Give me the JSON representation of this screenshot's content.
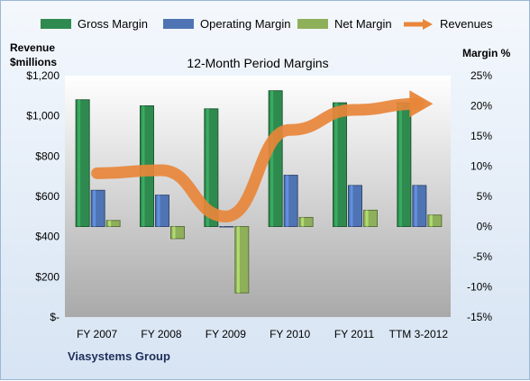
{
  "legend": [
    {
      "label": "Gross Margin",
      "color": "#2f8a4f"
    },
    {
      "label": "Operating Margin",
      "color": "#4f74b3"
    },
    {
      "label": "Net Margin",
      "color": "#8fb05a"
    },
    {
      "label": "Revenues",
      "color": "#e8863a"
    }
  ],
  "left_axis_title_line1": "Revenue",
  "left_axis_title_line2": "$millions",
  "right_axis_title": "Margin %",
  "company": "Viasystems Group",
  "chart_data": {
    "type": "bar",
    "title": "12-Month Period Margins",
    "categories": [
      "FY 2007",
      "FY 2008",
      "FY 2009",
      "FY 2010",
      "FY 2011",
      "TTM 3-2012"
    ],
    "series": [
      {
        "name": "Gross Margin",
        "axis": "right",
        "type": "bar",
        "values": [
          21,
          20,
          19.5,
          22.5,
          20.5,
          20.5
        ]
      },
      {
        "name": "Operating Margin",
        "axis": "right",
        "type": "bar",
        "values": [
          6,
          5.2,
          0,
          8.5,
          6.8,
          6.8
        ]
      },
      {
        "name": "Net Margin",
        "axis": "right",
        "type": "bar",
        "values": [
          1,
          -2,
          -11,
          1.5,
          2.7,
          1.9
        ]
      },
      {
        "name": "Revenues",
        "axis": "left",
        "type": "line",
        "values": [
          715,
          730,
          500,
          930,
          1030,
          1060
        ]
      }
    ],
    "left_axis": {
      "ylim": [
        0,
        1200
      ],
      "ticks": [
        "$-",
        "$200",
        "$400",
        "$600",
        "$800",
        "$1,000",
        "$1,200"
      ]
    },
    "right_axis": {
      "ylim": [
        -15,
        25
      ],
      "ticks": [
        "-15%",
        "-10%",
        "-5%",
        "0%",
        "5%",
        "10%",
        "15%",
        "20%",
        "25%"
      ]
    },
    "grid": false,
    "legend_position": "top"
  }
}
